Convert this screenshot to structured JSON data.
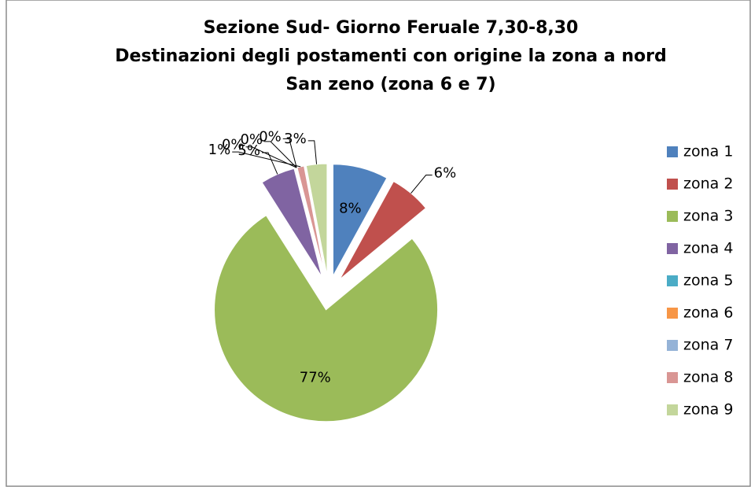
{
  "chart_data": {
    "type": "pie",
    "title": [
      "Sezione Sud- Giorno Feruale 7,30-8,30",
      "Destinazioni degli postamenti con origine la zona a nord",
      "San zeno (zona 6 e 7)"
    ],
    "categories": [
      "zona 1",
      "zona 2",
      "zona 3",
      "zona 4",
      "zona 5",
      "zona 6",
      "zona 7",
      "zona 8",
      "zona 9"
    ],
    "values": [
      8,
      6,
      77,
      5,
      0,
      0,
      0,
      1,
      3
    ],
    "value_labels": [
      "8%",
      "6%",
      "77%",
      "5%",
      "0%",
      "0%",
      "0%",
      "1%",
      "3%"
    ],
    "colors": [
      "#4f81bd",
      "#c0504d",
      "#9bbb59",
      "#8064a2",
      "#4bacc6",
      "#f79646",
      "#95b3d7",
      "#d99694",
      "#c3d69b"
    ],
    "legend": "right",
    "exploded": true
  }
}
